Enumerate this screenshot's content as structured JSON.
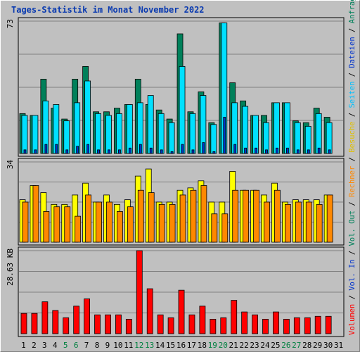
{
  "title": "Tages-Statistik im Monat November 2022",
  "colors": {
    "hits": "#00805a",
    "files": "#00e0ff",
    "pages": "#0033cc",
    "visits": "#ffff00",
    "sites": "#ff8800",
    "kbytes": "#ff0000",
    "weekend": "#008040",
    "grid": "#808080",
    "bg": "#c0c0c0"
  },
  "right_legend": [
    {
      "text": "Volumen",
      "color": "#ff0000"
    },
    {
      "text": " / ",
      "color": "#000000"
    },
    {
      "text": "Vol. In",
      "color": "#0033cc"
    },
    {
      "text": " / ",
      "color": "#000000"
    },
    {
      "text": "Vol. Out",
      "color": "#00805a"
    },
    {
      "text": " / ",
      "color": "#000000"
    },
    {
      "text": "Rechner",
      "color": "#ff8800"
    },
    {
      "text": " / ",
      "color": "#000000"
    },
    {
      "text": "Besuche",
      "color": "#e0c000"
    },
    {
      "text": " / ",
      "color": "#000000"
    },
    {
      "text": "Seiten",
      "color": "#00c0ff"
    },
    {
      "text": " / ",
      "color": "#000000"
    },
    {
      "text": "Dateien",
      "color": "#0033cc"
    },
    {
      "text": " / ",
      "color": "#000000"
    },
    {
      "text": "Anfragen",
      "color": "#00805a"
    }
  ],
  "chart_data": {
    "type": "bar",
    "x": [
      "1",
      "2",
      "3",
      "4",
      "5",
      "6",
      "7",
      "8",
      "9",
      "10",
      "11",
      "12",
      "13",
      "14",
      "15",
      "16",
      "17",
      "18",
      "19",
      "20",
      "21",
      "22",
      "23",
      "24",
      "25",
      "26",
      "27",
      "28",
      "29",
      "30",
      "31"
    ],
    "weekend_days": [
      "5",
      "6",
      "12",
      "13",
      "19",
      "20",
      "26",
      "27"
    ],
    "panels": [
      {
        "ymax_label": "73",
        "ymax": 73,
        "series": [
          {
            "name": "Anfragen",
            "values": [
              22,
              21,
              41,
              25,
              19,
              41,
              48,
              23,
              23,
              25,
              27,
              41,
              27,
              24,
              19,
              66,
              23,
              34,
              17,
              72,
              39,
              29,
              21,
              21,
              28,
              28,
              18,
              17,
              25,
              20,
              0
            ]
          },
          {
            "name": "Dateien",
            "values": [
              21,
              21,
              29,
              27,
              18,
              28,
              40,
              22,
              21,
              22,
              27,
              28,
              32,
              22,
              17,
              48,
              22,
              32,
              16,
              72,
              28,
              26,
              21,
              17,
              28,
              28,
              17,
              15,
              22,
              17,
              0
            ]
          },
          {
            "name": "Seiten",
            "values": [
              2,
              2,
              5,
              5,
              2,
              4,
              5,
              2,
              2,
              2,
              3,
              5,
              3,
              2,
              1,
              5,
              2,
              6,
              1,
              20,
              5,
              3,
              3,
              2,
              3,
              3,
              2,
              2,
              3,
              2,
              0
            ]
          }
        ]
      },
      {
        "ymax_label": "34",
        "ymax": 34,
        "series": [
          {
            "name": "Besuche",
            "values": [
              18,
              24,
              21,
              16,
              16,
              20,
              25,
              17,
              20,
              16,
              18,
              28,
              31,
              17,
              17,
              22,
              23,
              26,
              17,
              17,
              30,
              22,
              22,
              20,
              25,
              17,
              18,
              18,
              18,
              20,
              0
            ]
          },
          {
            "name": "Rechner",
            "values": [
              17,
              24,
              13,
              15,
              15,
              11,
              20,
              17,
              17,
              13,
              15,
              22,
              21,
              16,
              16,
              20,
              22,
              24,
              12,
              12,
              22,
              22,
              22,
              17,
              22,
              16,
              17,
              17,
              16,
              20,
              0
            ]
          }
        ]
      },
      {
        "ymax_label": "28.63 KB",
        "ymax": 28.63,
        "series": [
          {
            "name": "Volumen",
            "values": [
              7,
              7,
              11,
              8,
              5.5,
              9.5,
              12,
              6.5,
              6.5,
              6.5,
              5,
              28.63,
              15.5,
              6.5,
              5.5,
              15,
              6.5,
              9.5,
              5,
              5.5,
              11.5,
              7.5,
              6.5,
              5,
              7.5,
              5,
              5.5,
              5.5,
              6,
              6,
              0
            ]
          }
        ]
      }
    ]
  }
}
